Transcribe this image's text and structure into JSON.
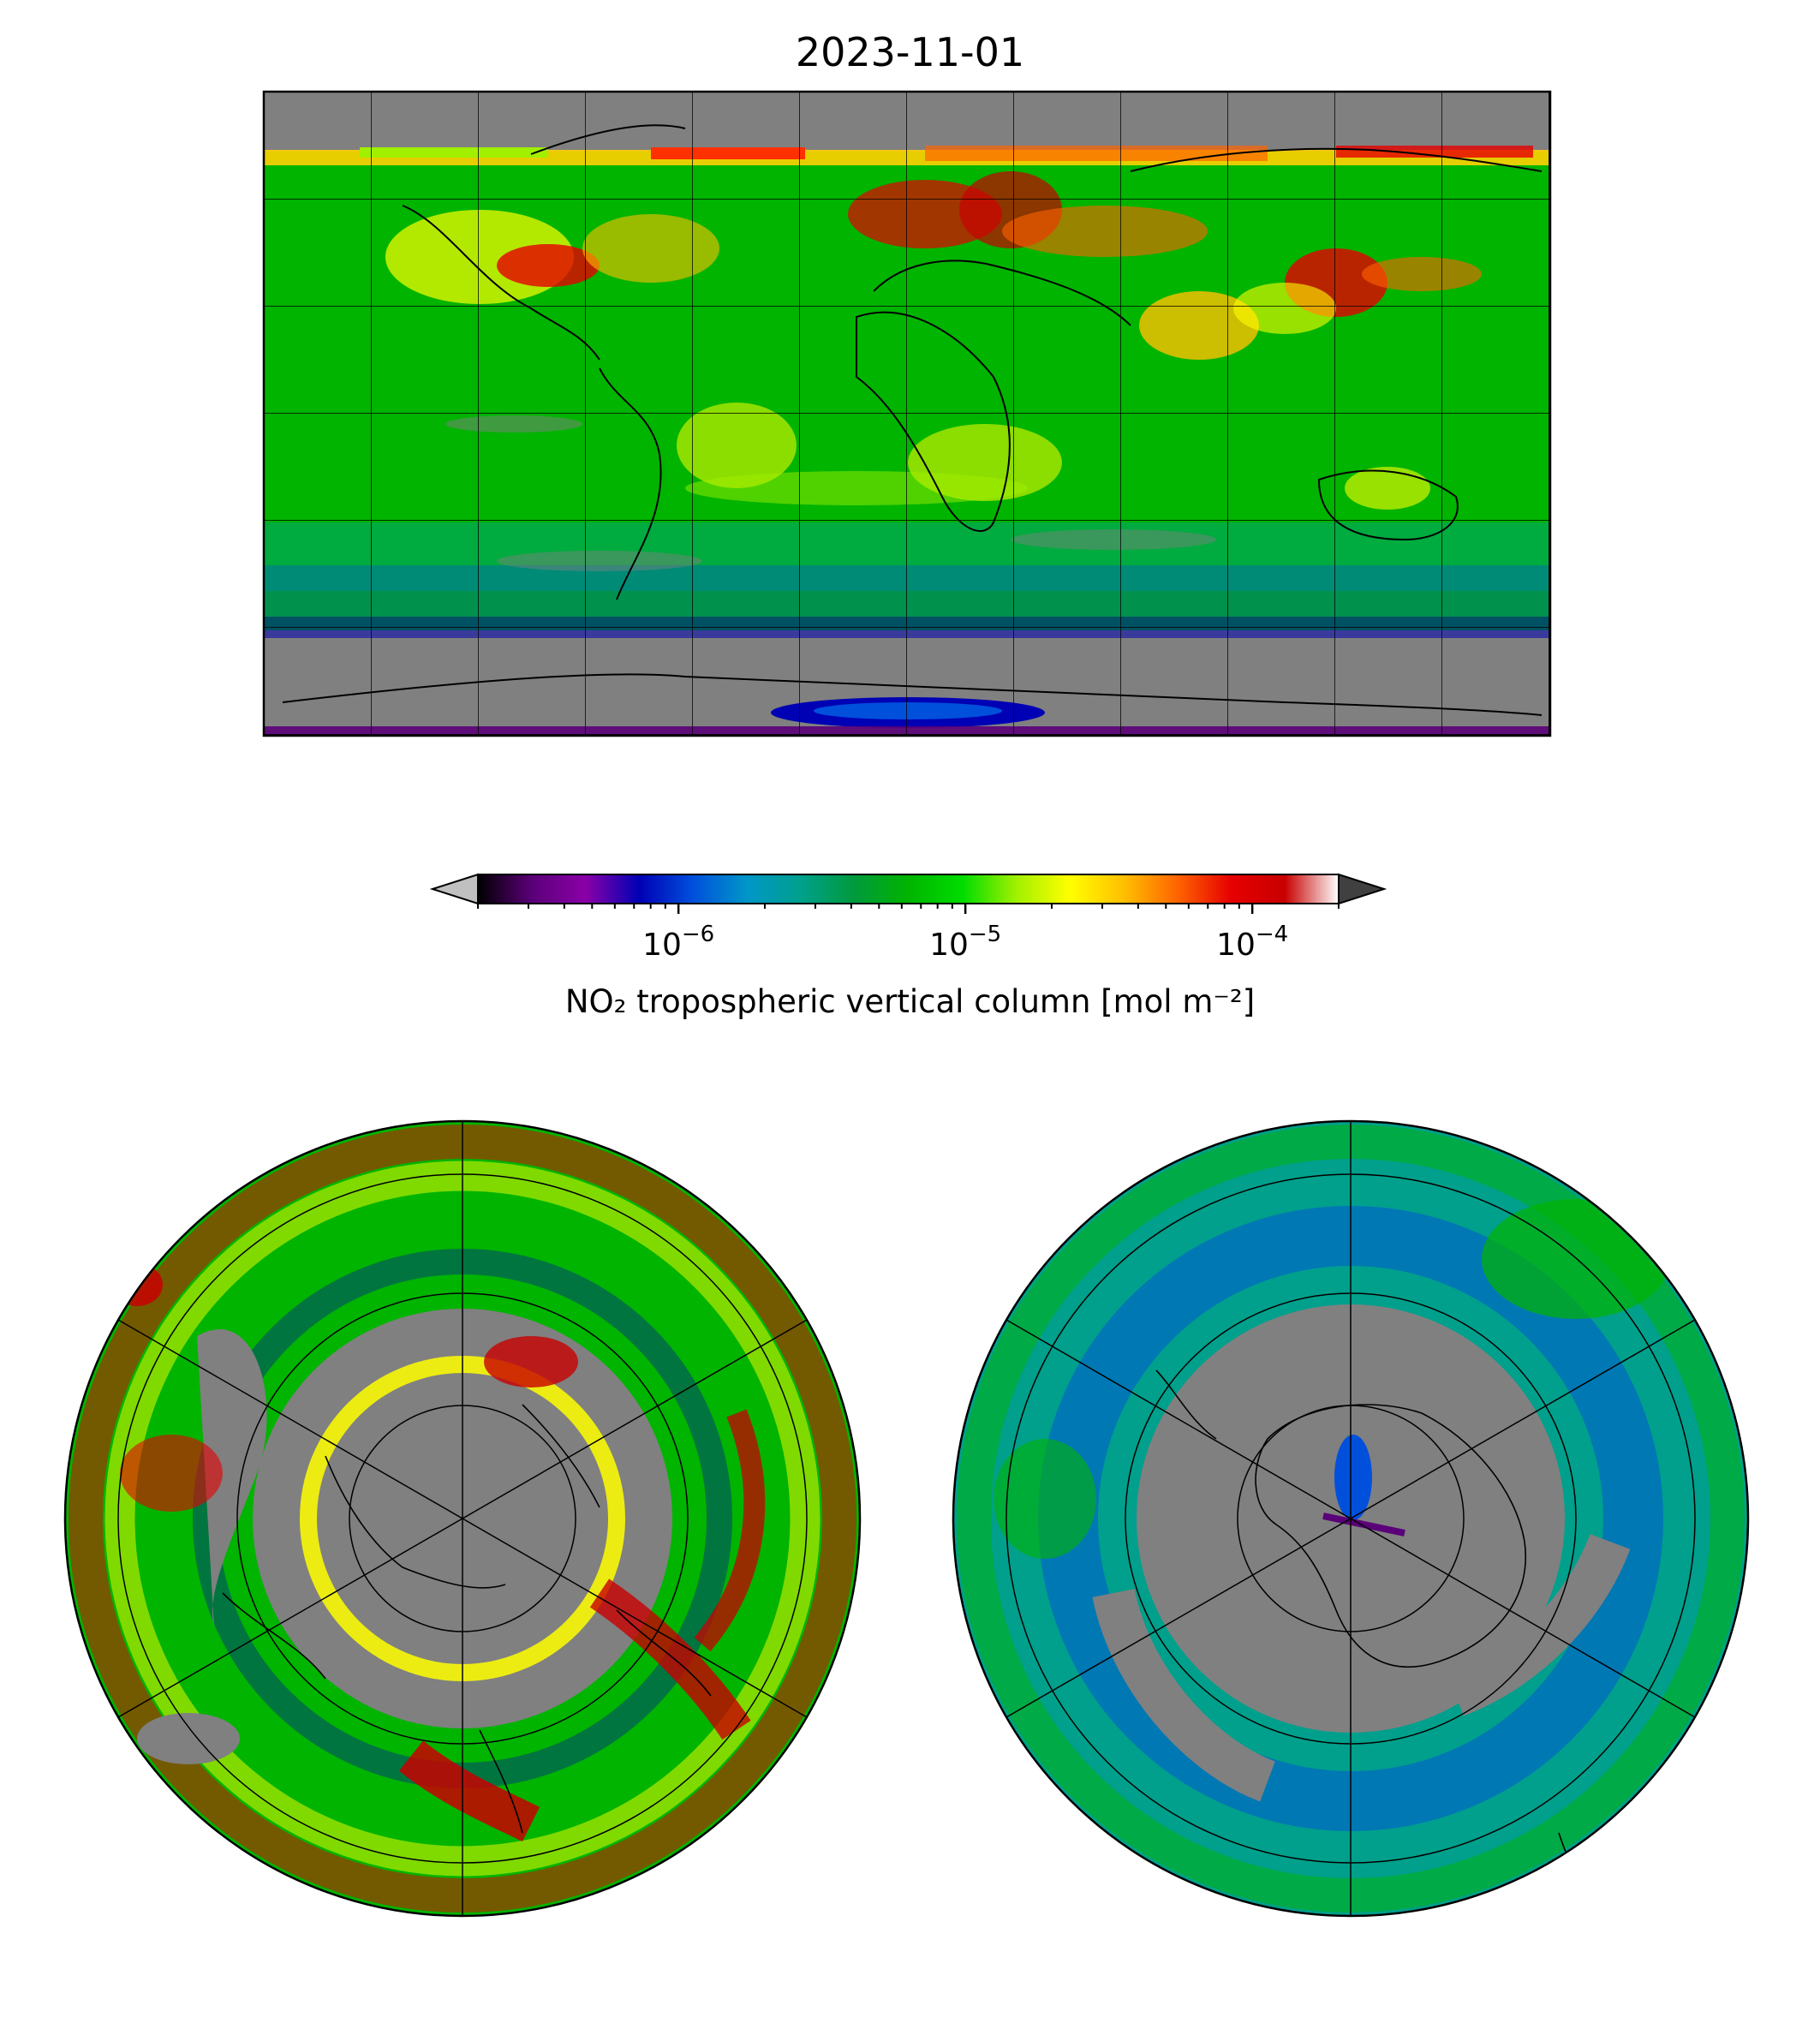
{
  "title": "2023-11-01",
  "colorbar": {
    "label": "NO₂ tropospheric vertical column [mol m⁻²]",
    "scale": "log",
    "range": [
      2e-07,
      0.0002
    ],
    "ticks": [
      {
        "value": 1e-06,
        "base": "10",
        "exp": "−6"
      },
      {
        "value": 1e-05,
        "base": "10",
        "exp": "−5"
      },
      {
        "value": 0.0001,
        "base": "10",
        "exp": "−4"
      }
    ],
    "extend": "both",
    "under_color": "#c0c0c0",
    "over_color": "#404040",
    "stops": [
      "#000000",
      "#5a0078",
      "#8a00a8",
      "#0000b4",
      "#0050dc",
      "#0096c8",
      "#00a08c",
      "#009a3c",
      "#00b400",
      "#00dc00",
      "#a0f000",
      "#ffff00",
      "#ffc000",
      "#ff6400",
      "#e60000",
      "#c80000",
      "#ffffff"
    ]
  },
  "colors": {
    "no_data": "#808080",
    "coastline": "#000000",
    "gridline": "#000000"
  },
  "maps": [
    {
      "name": "global",
      "projection": "equirectangular",
      "lat_range": [
        -90,
        90
      ],
      "lon_range": [
        -180,
        180
      ]
    },
    {
      "name": "north-polar",
      "projection": "north-polar-stereographic"
    },
    {
      "name": "south-polar",
      "projection": "south-polar-stereographic"
    }
  ]
}
